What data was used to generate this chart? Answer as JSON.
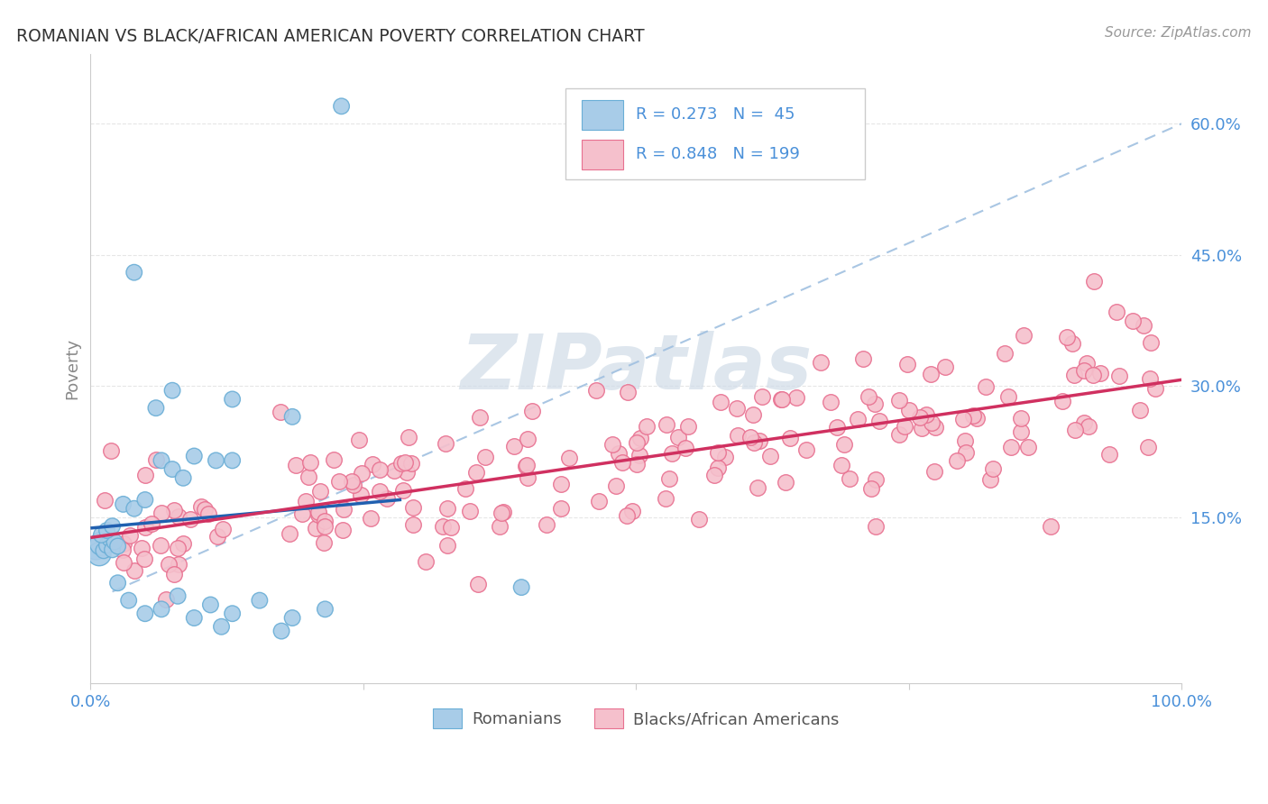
{
  "title": "ROMANIAN VS BLACK/AFRICAN AMERICAN POVERTY CORRELATION CHART",
  "source": "Source: ZipAtlas.com",
  "ylabel": "Poverty",
  "y_tick_labels": [
    "15.0%",
    "30.0%",
    "45.0%",
    "60.0%"
  ],
  "y_tick_values": [
    0.15,
    0.3,
    0.45,
    0.6
  ],
  "xlim": [
    0.0,
    1.0
  ],
  "ylim": [
    -0.04,
    0.68
  ],
  "blue_color": "#a8cce8",
  "blue_edge_color": "#6aaed6",
  "pink_color": "#f5c0cc",
  "pink_edge_color": "#e87090",
  "blue_line_color": "#2060b0",
  "pink_line_color": "#d03060",
  "dashed_line_color": "#a0c0e0",
  "watermark_color": "#d0dce8",
  "title_color": "#333333",
  "source_color": "#999999",
  "axis_label_color": "#888888",
  "tick_color": "#4a90d9",
  "legend_R_color": "#4a90d9",
  "background_color": "#ffffff",
  "grid_color": "#e0e0e0",
  "legend_text_color": "#222222",
  "bottom_legend_text_color": "#555555"
}
